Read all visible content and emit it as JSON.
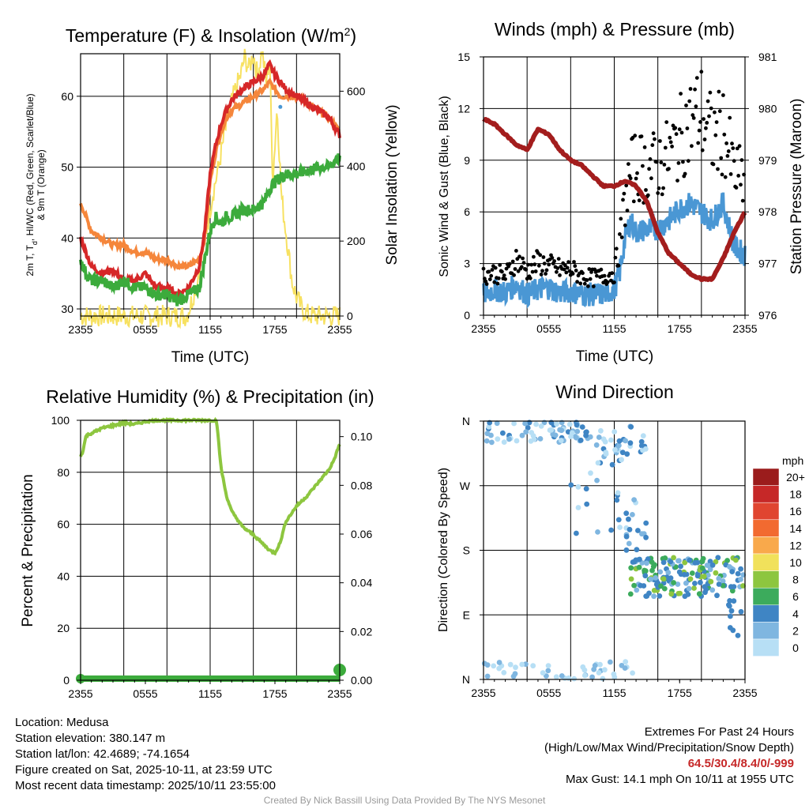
{
  "chart_data": [
    {
      "type": "line",
      "title": "Temperature (F) & Insolation (W/m²)",
      "title_main": "Temperature (F) & Insolation (W/m",
      "title_sup": "2",
      "title_close": ")",
      "xlabel": "Time (UTC)",
      "ylabel_left_line1": "2m T, T",
      "ylabel_left_sub": "d",
      "ylabel_left_line1_rest": ", HI/WC (Red, Green, Scarlet/Blue)",
      "ylabel_left_line2": "& 9m T (Orange)",
      "ylabel_right": "Solar Insolation (Yellow)",
      "x_ticks": [
        "2355",
        "0555",
        "1155",
        "1755",
        "2355"
      ],
      "x_range": [
        0,
        24
      ],
      "ylim": [
        29,
        66
      ],
      "yticks": [
        30,
        40,
        50,
        60
      ],
      "y2lim": [
        0,
        700
      ],
      "y2ticks": [
        0,
        200,
        400,
        600
      ],
      "series": [
        {
          "name": "2m T",
          "color": "#d62728",
          "x": [
            0,
            0.5,
            1,
            2,
            3,
            4,
            5,
            6,
            7,
            8,
            9,
            10,
            11,
            11.5,
            12,
            12.5,
            13,
            13.5,
            14,
            15,
            16,
            17,
            17.5,
            18,
            18.5,
            19,
            20,
            21,
            22,
            23,
            24
          ],
          "values": [
            40,
            38,
            36,
            35,
            35.5,
            34,
            34,
            35,
            33,
            33,
            32,
            33,
            36,
            41,
            49,
            53,
            56,
            58,
            59.5,
            61,
            62,
            63,
            64.5,
            63,
            62,
            61,
            60,
            59,
            58,
            57,
            54.5
          ]
        },
        {
          "name": "9m T",
          "color": "#f5863b",
          "x": [
            0,
            0.5,
            1,
            2,
            3,
            4,
            5,
            6,
            7,
            8,
            9,
            10,
            11,
            11.5,
            12,
            12.5,
            13,
            13.5,
            14,
            15,
            16,
            17,
            17.5,
            18,
            18.5,
            19,
            20,
            21,
            22,
            23,
            24
          ],
          "values": [
            45,
            43,
            41,
            40,
            39,
            39,
            38,
            38,
            37,
            37,
            36,
            36,
            37,
            40,
            48,
            52,
            55,
            57,
            58,
            59,
            60,
            61,
            62,
            61,
            60,
            60,
            60,
            59,
            58,
            57,
            55
          ]
        },
        {
          "name": "Td",
          "color": "#3cab3c",
          "x": [
            0,
            0.5,
            1,
            2,
            3,
            4,
            5,
            6,
            7,
            8,
            9,
            10,
            11,
            11.5,
            12,
            12.5,
            13,
            13.5,
            14,
            15,
            16,
            17,
            17.5,
            18,
            19,
            20,
            21,
            22,
            23,
            24
          ],
          "values": [
            37,
            35,
            34,
            34,
            33,
            34,
            33,
            33,
            32,
            32,
            31,
            32,
            33,
            37,
            41,
            43,
            42,
            43,
            43,
            44,
            44,
            45,
            47,
            48,
            49,
            49,
            49.5,
            50,
            50,
            51.5
          ]
        },
        {
          "name": "Insolation",
          "color": "#f7e161",
          "axis": "right",
          "x": [
            0,
            9.8,
            10.3,
            11,
            11.6,
            12.2,
            12.8,
            13.3,
            13.8,
            14.3,
            14.8,
            15.2,
            15.6,
            16,
            16.4,
            16.8,
            17.2,
            17.5,
            17.8,
            18.2,
            18.6,
            19,
            19.3,
            19.6,
            20,
            20.5,
            21,
            21.5,
            22
          ],
          "values": [
            0,
            0,
            40,
            120,
            220,
            320,
            400,
            480,
            550,
            600,
            640,
            690,
            660,
            700,
            640,
            710,
            620,
            700,
            360,
            560,
            320,
            230,
            160,
            90,
            50,
            20,
            5,
            0,
            0
          ]
        }
      ]
    },
    {
      "type": "line",
      "title": "Winds (mph) & Pressure (mb)",
      "xlabel": "Time (UTC)",
      "ylabel": "Sonic Wind & Gust (Blue, Black)",
      "ylabel_right": "Station Pressure (Maroon)",
      "x_ticks": [
        "2355",
        "0555",
        "1155",
        "1755",
        "2355"
      ],
      "x_range": [
        0,
        24
      ],
      "ylim": [
        0,
        15
      ],
      "yticks": [
        0,
        3,
        6,
        9,
        12,
        15
      ],
      "y2lim": [
        976,
        981
      ],
      "y2ticks": [
        976,
        977,
        978,
        979,
        980,
        981
      ],
      "series": [
        {
          "name": "Sonic Wind",
          "color": "#4a97d4",
          "x": [
            0,
            1,
            2,
            3,
            4,
            5,
            6,
            7,
            8,
            9,
            10,
            11,
            12,
            12.5,
            13,
            13.5,
            14,
            15,
            16,
            17,
            18,
            19,
            20,
            21,
            22,
            23,
            24
          ],
          "values": [
            1.2,
            1.5,
            1.3,
            1.8,
            1.2,
            1.5,
            1.6,
            1.3,
            1.4,
            1.2,
            1.2,
            1.2,
            1.5,
            2.5,
            4.5,
            5.5,
            4.8,
            5,
            5,
            5.5,
            6.2,
            6.5,
            6,
            5.5,
            6.5,
            4,
            3.5
          ]
        },
        {
          "name": "Gust",
          "color": "#000000",
          "x": [
            0,
            1,
            2,
            3,
            4,
            5,
            6,
            7,
            8,
            9,
            10,
            11,
            12,
            12.5,
            13,
            13.5,
            14,
            15,
            16,
            17,
            18,
            19,
            20,
            21,
            22,
            23,
            24
          ],
          "values": [
            2.3,
            2.4,
            2.2,
            3.2,
            2.5,
            3,
            2.8,
            2.6,
            2.6,
            2.2,
            2.1,
            2.2,
            2.4,
            4,
            6.5,
            8,
            8.5,
            8.3,
            8.5,
            9,
            10,
            11,
            11.5,
            10,
            10.5,
            8,
            7.5
          ]
        },
        {
          "name": "Pressure",
          "color": "#a31d1d",
          "axis": "right",
          "x": [
            0,
            1,
            2,
            3,
            4,
            5,
            6,
            7,
            8,
            9,
            10,
            11,
            12,
            13,
            14,
            15,
            16,
            17,
            18,
            19,
            20,
            21,
            22,
            23,
            24
          ],
          "values": [
            979.8,
            979.7,
            979.5,
            979.3,
            979.2,
            979.6,
            979.5,
            979.2,
            979.0,
            978.9,
            978.7,
            978.5,
            978.5,
            978.6,
            978.5,
            978.2,
            977.6,
            977.2,
            977.0,
            976.8,
            976.7,
            976.7,
            977.1,
            977.6,
            978
          ]
        }
      ]
    },
    {
      "type": "line",
      "title": "Relative Humidity (%) & Precipitation (in)",
      "xlabel": "",
      "ylabel": "Percent & Precipitation",
      "x_ticks": [
        "2355",
        "0555",
        "1155",
        "1755",
        "2355"
      ],
      "x_range": [
        0,
        24
      ],
      "ylim": [
        0,
        100
      ],
      "yticks": [
        0,
        20,
        40,
        60,
        80,
        100
      ],
      "y2lim": [
        0,
        0.1067
      ],
      "y2ticks": [
        "0.00",
        "0.02",
        "0.04",
        "0.06",
        "0.08",
        "0.10"
      ],
      "series": [
        {
          "name": "Relative Humidity",
          "color": "#8dc63f",
          "x": [
            0,
            0.2,
            0.5,
            1,
            2,
            3,
            4,
            5,
            6,
            7,
            8,
            9,
            10,
            11,
            12,
            12.6,
            13,
            13.5,
            14,
            15,
            16,
            17,
            17.5,
            18,
            18.5,
            19,
            20,
            21,
            22,
            23,
            23.5,
            24
          ],
          "values": [
            86,
            88,
            94,
            95,
            97,
            98,
            99,
            98.5,
            99.5,
            100,
            100,
            100,
            100,
            100,
            100,
            100,
            82,
            71,
            65,
            59,
            56,
            52,
            50,
            49,
            53,
            61,
            67,
            71,
            76,
            81,
            85,
            91
          ]
        },
        {
          "name": "Precipitation",
          "color": "#3cab3c",
          "axis": "right",
          "x": [
            0,
            24
          ],
          "values": [
            0,
            0
          ]
        }
      ]
    },
    {
      "type": "scatter",
      "title": "Wind Direction",
      "ylabel": "Direction (Colored By Speed)",
      "x_ticks": [
        "2355",
        "0555",
        "1155",
        "1755",
        "2355"
      ],
      "x_range": [
        0,
        24
      ],
      "y_ticks": [
        "N",
        "E",
        "S",
        "W",
        "N"
      ],
      "ylim": [
        0,
        360
      ],
      "legend_title": "mph",
      "legend_labels": [
        "20+",
        "18",
        "16",
        "14",
        "12",
        "10",
        "8",
        "6",
        "4",
        "2",
        "0"
      ],
      "legend_colors": [
        "#9b1c1c",
        "#c62828",
        "#e04530",
        "#f26a30",
        "#f9a94b",
        "#f1e15b",
        "#8dc63f",
        "#3cab5c",
        "#3f85c4",
        "#7fb6e0",
        "#b7dff5"
      ]
    }
  ],
  "info_left": {
    "location": "Location: Medusa",
    "elevation": "Station elevation: 380.147 m",
    "latlon": "Station lat/lon: 42.4689; -74.1654",
    "created": "Figure created on Sat, 2025-10-11, at 23:59 UTC",
    "recent": "Most recent data timestamp: 2025/10/11 23:55:00"
  },
  "info_right": {
    "title": "Extremes For Past 24 Hours",
    "subtitle": "(High/Low/Max Wind/Precipitation/Snow Depth)",
    "values": "64.5/30.4/8.4/0/-999",
    "gust": "Max Gust: 14.1 mph On 10/11 at 1955 UTC"
  },
  "credit": "Created By Nick Bassill Using Data Provided By The NYS Mesonet"
}
